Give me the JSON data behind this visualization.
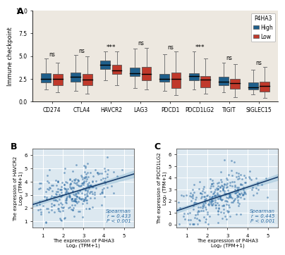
{
  "panel_A": {
    "categories": [
      "CD274",
      "CTLA4",
      "HAVCR2",
      "LAG3",
      "PDCD1",
      "PDCD1LG2",
      "TIGIT",
      "SIGLEC15"
    ],
    "significance": [
      "ns",
      "ns",
      "***",
      "ns",
      "ns",
      "***",
      "ns",
      "ns"
    ],
    "high_color": "#1f5f8b",
    "low_color": "#c0392b",
    "ylabel": "Immune checkpoint",
    "ylim": [
      0.0,
      10.0
    ],
    "yticks": [
      0.0,
      2.5,
      5.0,
      7.5,
      10.0
    ],
    "legend_title": "P4HA3",
    "legend_high": "High",
    "legend_low": "Low",
    "boxes_high": [
      {
        "q1": 2.1,
        "median": 2.5,
        "q3": 3.1,
        "whislo": 1.3,
        "whishi": 4.7
      },
      {
        "q1": 2.2,
        "median": 2.7,
        "q3": 3.2,
        "whislo": 1.2,
        "whishi": 5.1
      },
      {
        "q1": 3.6,
        "median": 4.0,
        "q3": 4.5,
        "whislo": 2.3,
        "whishi": 5.5
      },
      {
        "q1": 2.8,
        "median": 3.1,
        "q3": 3.7,
        "whislo": 1.5,
        "whishi": 5.8
      },
      {
        "q1": 2.2,
        "median": 2.5,
        "q3": 3.0,
        "whislo": 1.2,
        "whishi": 5.2
      },
      {
        "q1": 2.3,
        "median": 2.8,
        "q3": 3.1,
        "whislo": 1.3,
        "whishi": 5.5
      },
      {
        "q1": 1.8,
        "median": 2.2,
        "q3": 2.7,
        "whislo": 1.0,
        "whishi": 4.3
      },
      {
        "q1": 1.3,
        "median": 1.6,
        "q3": 2.1,
        "whislo": 0.8,
        "whishi": 3.5
      }
    ],
    "boxes_low": [
      {
        "q1": 1.8,
        "median": 2.5,
        "q3": 3.0,
        "whislo": 1.0,
        "whishi": 4.3
      },
      {
        "q1": 1.8,
        "median": 2.4,
        "q3": 3.0,
        "whislo": 0.9,
        "whishi": 5.0
      },
      {
        "q1": 3.0,
        "median": 3.4,
        "q3": 4.0,
        "whislo": 1.8,
        "whishi": 5.5
      },
      {
        "q1": 2.3,
        "median": 3.0,
        "q3": 3.8,
        "whislo": 1.3,
        "whishi": 5.9
      },
      {
        "q1": 1.5,
        "median": 2.5,
        "q3": 3.2,
        "whislo": 0.7,
        "whishi": 5.5
      },
      {
        "q1": 1.6,
        "median": 2.4,
        "q3": 2.8,
        "whislo": 0.9,
        "whishi": 4.7
      },
      {
        "q1": 1.4,
        "median": 2.0,
        "q3": 2.5,
        "whislo": 0.5,
        "whishi": 4.1
      },
      {
        "q1": 1.1,
        "median": 1.7,
        "q3": 2.2,
        "whislo": 0.4,
        "whishi": 3.8
      }
    ],
    "bg_color": "#ede8e0"
  },
  "panel_B": {
    "xlabel": "The expression of P4HA3\nLog₂ (TPM+1)",
    "ylabel": "The expression of HAVCR2\nLog₂ (TPM+1)",
    "xlim": [
      0.5,
      5.5
    ],
    "ylim": [
      0.5,
      6.5
    ],
    "xticks": [
      1,
      2,
      3,
      4,
      5
    ],
    "yticks": [
      1,
      2,
      3,
      4,
      5,
      6
    ],
    "spearman_r": "r = 0.433",
    "spearman_p": "P < 0.001",
    "spearman_label": "Spearman",
    "dot_color": "#2e6da4",
    "line_color": "#1a3f6e",
    "ci_color": "#aecde0",
    "n_points": 300,
    "seed": 42,
    "x_mean": 2.5,
    "x_std": 0.95,
    "y_mean": 3.2,
    "y_std": 1.0,
    "corr": 0.433,
    "bg_color": "#dce8f0"
  },
  "panel_C": {
    "xlabel": "The expression of P4HA3\nLog₂ (TPM+1)",
    "ylabel": "The expression of PDCD1LG2\nLog₂ (TPM+1)",
    "xlim": [
      0.5,
      5.5
    ],
    "ylim": [
      -0.3,
      6.5
    ],
    "xticks": [
      1,
      2,
      3,
      4,
      5
    ],
    "yticks": [
      0,
      1,
      2,
      3,
      4,
      5,
      6
    ],
    "spearman_r": "r = 0.445",
    "spearman_p": "P < 0.001",
    "spearman_label": "Spearman",
    "dot_color": "#2e6da4",
    "line_color": "#1a3f6e",
    "ci_color": "#aecde0",
    "n_points": 300,
    "seed": 77,
    "x_mean": 2.5,
    "x_std": 0.95,
    "y_mean": 2.3,
    "y_std": 1.1,
    "corr": 0.445,
    "bg_color": "#dce8f0"
  }
}
